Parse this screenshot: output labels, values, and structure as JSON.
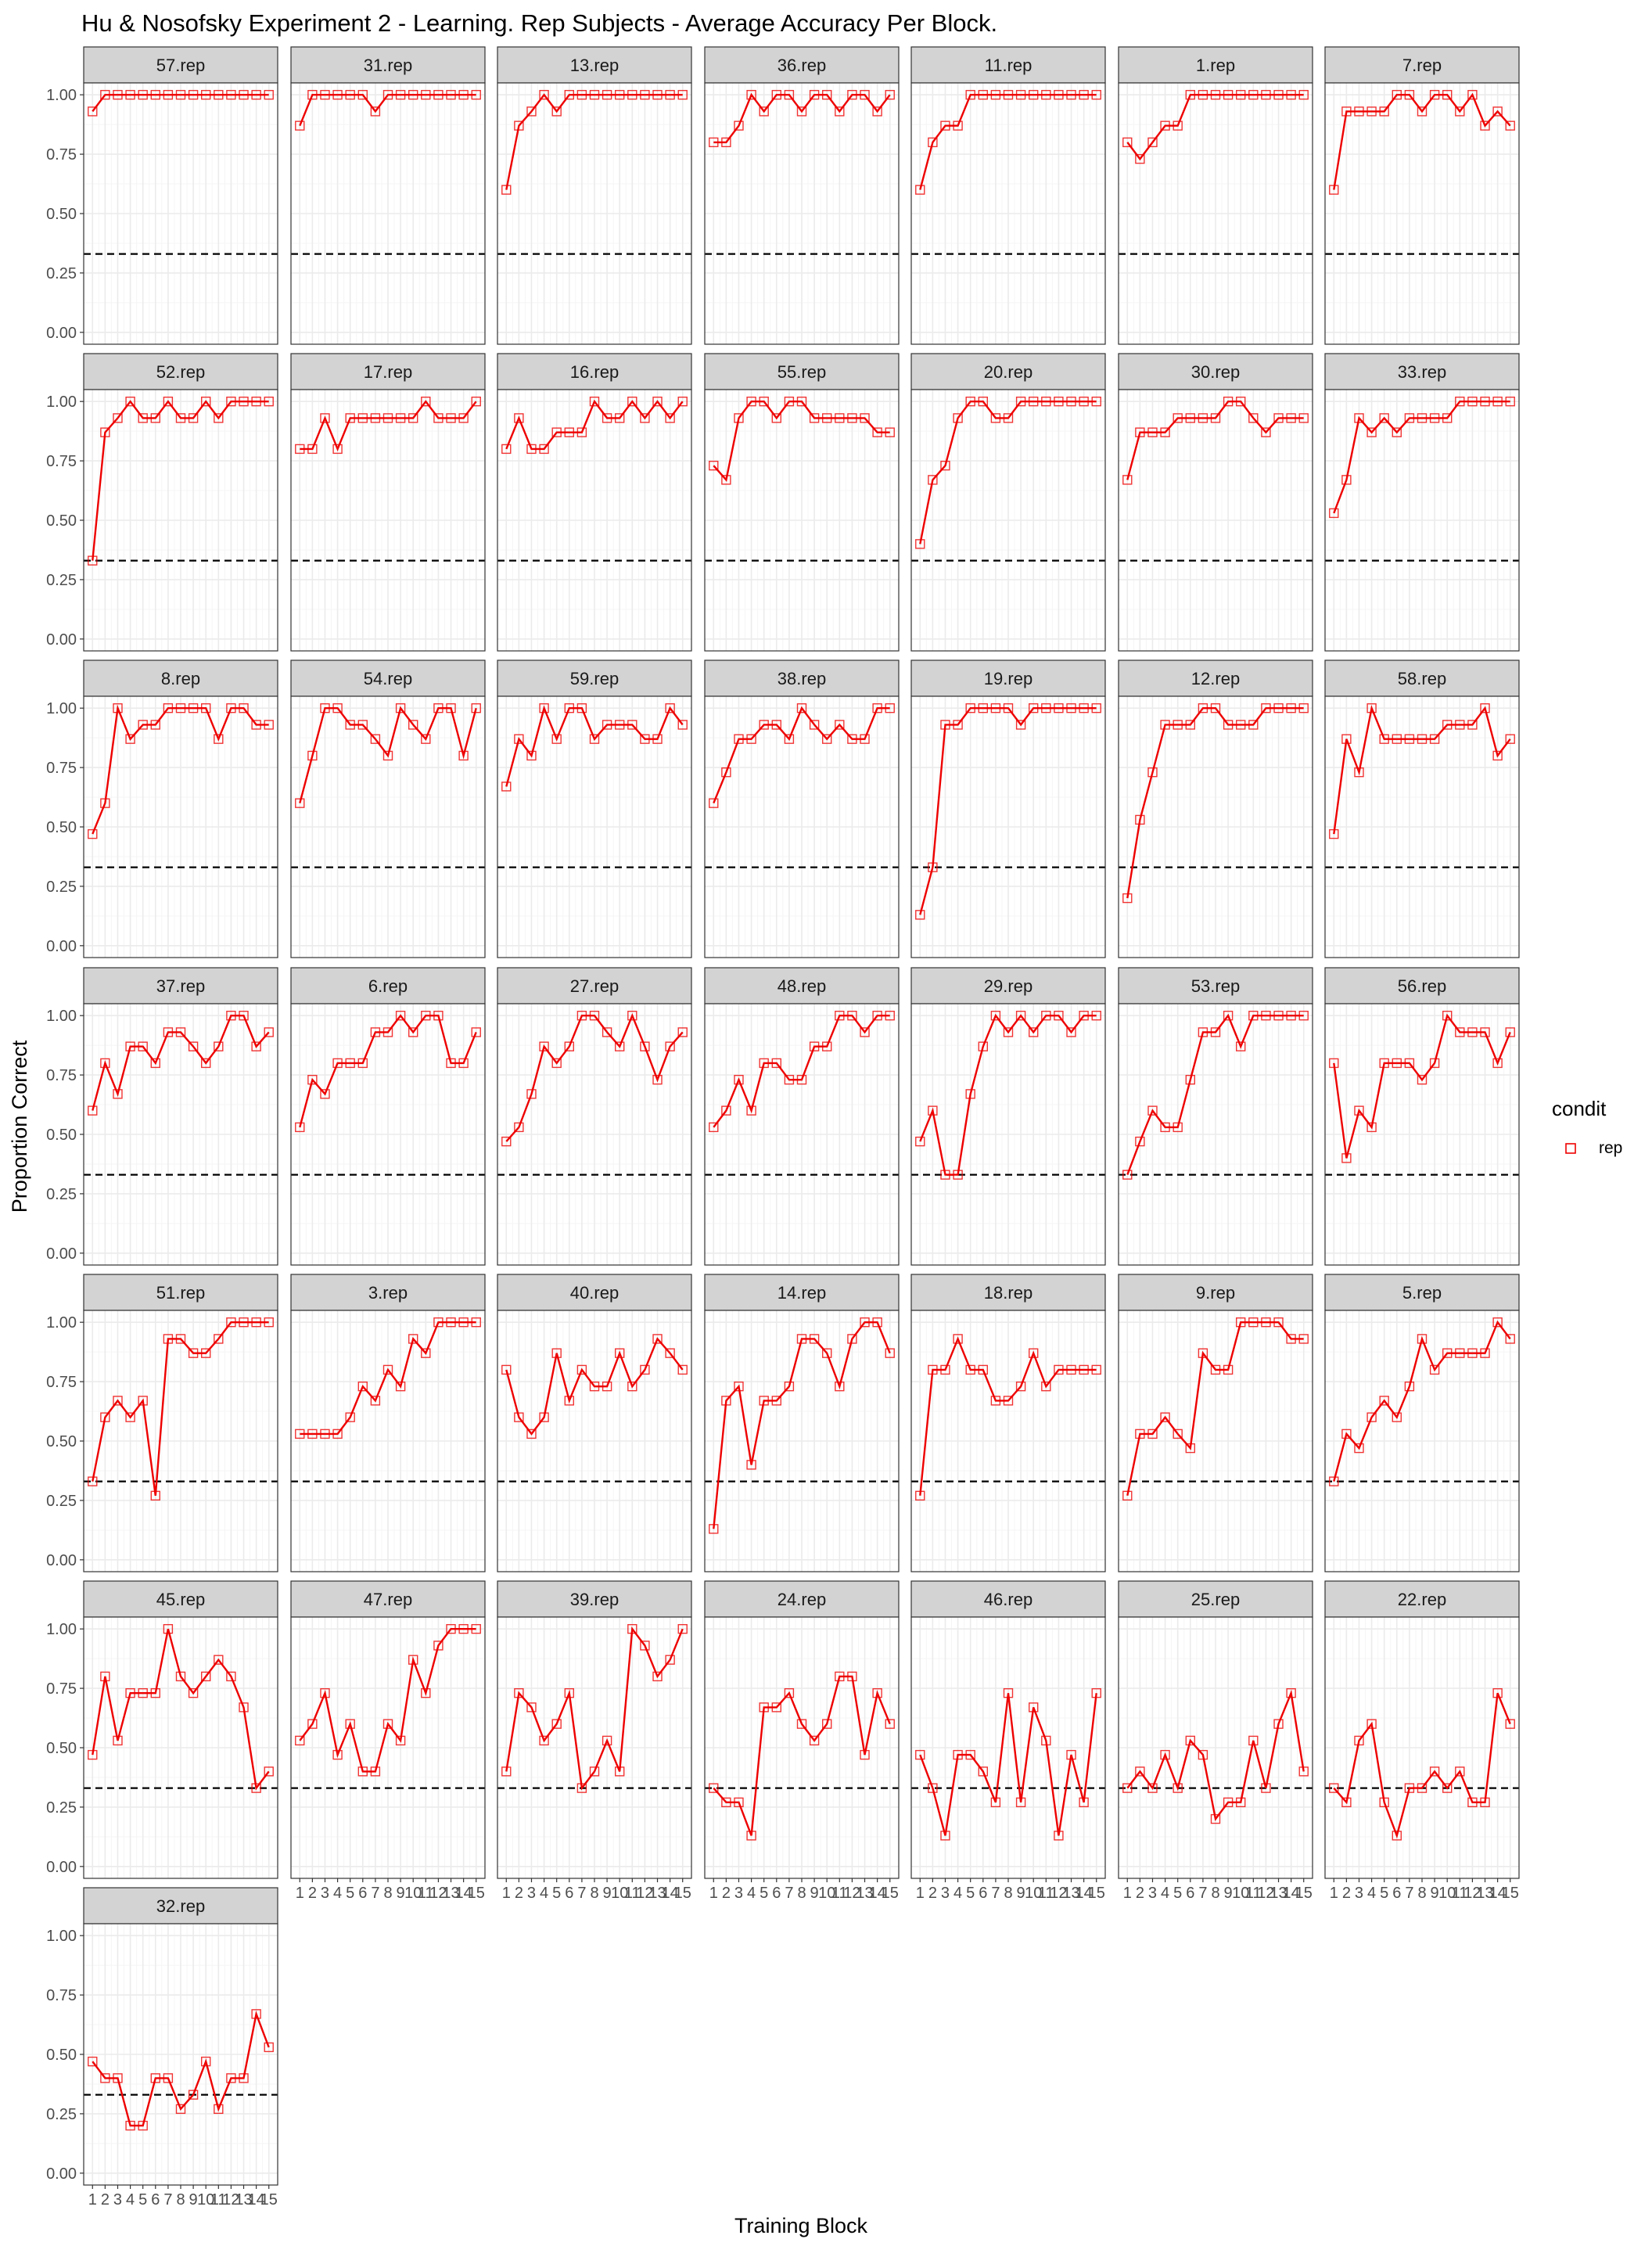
{
  "title": "Hu & Nosofsky Experiment 2 - Learning. Rep Subjects - Average Accuracy Per Block.",
  "xlabel": "Training Block",
  "ylabel": "Proportion Correct",
  "legend": {
    "title": "condit",
    "entries": [
      "rep"
    ],
    "position": "right"
  },
  "colors": {
    "series": "#ee0000",
    "chance_line": "#000000",
    "strip": "#d3d3d3",
    "panel_border": "#333333",
    "grid_major": "#ebebeb",
    "grid_minor": "#f5f5f5"
  },
  "chart_data": {
    "type": "line",
    "facet_layout": {
      "columns": 7,
      "rows": 7
    },
    "x": [
      1,
      2,
      3,
      4,
      5,
      6,
      7,
      8,
      9,
      10,
      11,
      12,
      13,
      14,
      15
    ],
    "x_tick_labels": [
      "1",
      "2",
      "3",
      "4",
      "5",
      "6",
      "7",
      "8",
      "9",
      "10",
      "11",
      "12",
      "13",
      "14",
      "15"
    ],
    "y_ticks": [
      "0.00",
      "0.25",
      "0.50",
      "0.75",
      "1.00"
    ],
    "ylim": [
      0,
      1
    ],
    "xlim": [
      1,
      15
    ],
    "chance_line": 0.33,
    "grid": true,
    "panels": [
      {
        "name": "57.rep",
        "values": [
          0.93,
          1,
          1,
          1,
          1,
          1,
          1,
          1,
          1,
          1,
          1,
          1,
          1,
          1,
          1
        ]
      },
      {
        "name": "31.rep",
        "values": [
          0.87,
          1,
          1,
          1,
          1,
          1,
          0.93,
          1,
          1,
          1,
          1,
          1,
          1,
          1,
          1
        ]
      },
      {
        "name": "13.rep",
        "values": [
          0.6,
          0.87,
          0.93,
          1,
          0.93,
          1,
          1,
          1,
          1,
          1,
          1,
          1,
          1,
          1,
          1
        ]
      },
      {
        "name": "36.rep",
        "values": [
          0.8,
          0.8,
          0.87,
          1,
          0.93,
          1,
          1,
          0.93,
          1,
          1,
          0.93,
          1,
          1,
          0.93,
          1
        ]
      },
      {
        "name": "11.rep",
        "values": [
          0.6,
          0.8,
          0.87,
          0.87,
          1,
          1,
          1,
          1,
          1,
          1,
          1,
          1,
          1,
          1,
          1
        ]
      },
      {
        "name": "1.rep",
        "values": [
          0.8,
          0.73,
          0.8,
          0.87,
          0.87,
          1,
          1,
          1,
          1,
          1,
          1,
          1,
          1,
          1,
          1
        ]
      },
      {
        "name": "7.rep",
        "values": [
          0.6,
          0.93,
          0.93,
          0.93,
          0.93,
          1,
          1,
          0.93,
          1,
          1,
          0.93,
          1,
          0.87,
          0.93,
          0.87
        ]
      },
      {
        "name": "52.rep",
        "values": [
          0.33,
          0.87,
          0.93,
          1,
          0.93,
          0.93,
          1,
          0.93,
          0.93,
          1,
          0.93,
          1,
          1,
          1,
          1
        ]
      },
      {
        "name": "17.rep",
        "values": [
          0.8,
          0.8,
          0.93,
          0.8,
          0.93,
          0.93,
          0.93,
          0.93,
          0.93,
          0.93,
          1,
          0.93,
          0.93,
          0.93,
          1
        ]
      },
      {
        "name": "16.rep",
        "values": [
          0.8,
          0.93,
          0.8,
          0.8,
          0.87,
          0.87,
          0.87,
          1,
          0.93,
          0.93,
          1,
          0.93,
          1,
          0.93,
          1
        ]
      },
      {
        "name": "55.rep",
        "values": [
          0.73,
          0.67,
          0.93,
          1,
          1,
          0.93,
          1,
          1,
          0.93,
          0.93,
          0.93,
          0.93,
          0.93,
          0.87,
          0.87
        ]
      },
      {
        "name": "20.rep",
        "values": [
          0.4,
          0.67,
          0.73,
          0.93,
          1,
          1,
          0.93,
          0.93,
          1,
          1,
          1,
          1,
          1,
          1,
          1
        ]
      },
      {
        "name": "30.rep",
        "values": [
          0.67,
          0.87,
          0.87,
          0.87,
          0.93,
          0.93,
          0.93,
          0.93,
          1,
          1,
          0.93,
          0.87,
          0.93,
          0.93,
          0.93
        ]
      },
      {
        "name": "33.rep",
        "values": [
          0.53,
          0.67,
          0.93,
          0.87,
          0.93,
          0.87,
          0.93,
          0.93,
          0.93,
          0.93,
          1,
          1,
          1,
          1,
          1
        ]
      },
      {
        "name": "8.rep",
        "values": [
          0.47,
          0.6,
          1,
          0.87,
          0.93,
          0.93,
          1,
          1,
          1,
          1,
          0.87,
          1,
          1,
          0.93,
          0.93
        ]
      },
      {
        "name": "54.rep",
        "values": [
          0.6,
          0.8,
          1,
          1,
          0.93,
          0.93,
          0.87,
          0.8,
          1,
          0.93,
          0.87,
          1,
          1,
          0.8,
          1
        ]
      },
      {
        "name": "59.rep",
        "values": [
          0.67,
          0.87,
          0.8,
          1,
          0.87,
          1,
          1,
          0.87,
          0.93,
          0.93,
          0.93,
          0.87,
          0.87,
          1,
          0.93
        ]
      },
      {
        "name": "38.rep",
        "values": [
          0.6,
          0.73,
          0.87,
          0.87,
          0.93,
          0.93,
          0.87,
          1,
          0.93,
          0.87,
          0.93,
          0.87,
          0.87,
          1,
          1
        ]
      },
      {
        "name": "19.rep",
        "values": [
          0.13,
          0.33,
          0.93,
          0.93,
          1,
          1,
          1,
          1,
          0.93,
          1,
          1,
          1,
          1,
          1,
          1
        ]
      },
      {
        "name": "12.rep",
        "values": [
          0.2,
          0.53,
          0.73,
          0.93,
          0.93,
          0.93,
          1,
          1,
          0.93,
          0.93,
          0.93,
          1,
          1,
          1,
          1
        ]
      },
      {
        "name": "58.rep",
        "values": [
          0.47,
          0.87,
          0.73,
          1,
          0.87,
          0.87,
          0.87,
          0.87,
          0.87,
          0.93,
          0.93,
          0.93,
          1,
          0.8,
          0.87
        ]
      },
      {
        "name": "37.rep",
        "values": [
          0.6,
          0.8,
          0.67,
          0.87,
          0.87,
          0.8,
          0.93,
          0.93,
          0.87,
          0.8,
          0.87,
          1,
          1,
          0.87,
          0.93
        ]
      },
      {
        "name": "6.rep",
        "values": [
          0.53,
          0.73,
          0.67,
          0.8,
          0.8,
          0.8,
          0.93,
          0.93,
          1,
          0.93,
          1,
          1,
          0.8,
          0.8,
          0.93
        ]
      },
      {
        "name": "27.rep",
        "values": [
          0.47,
          0.53,
          0.67,
          0.87,
          0.8,
          0.87,
          1,
          1,
          0.93,
          0.87,
          1,
          0.87,
          0.73,
          0.87,
          0.93
        ]
      },
      {
        "name": "48.rep",
        "values": [
          0.53,
          0.6,
          0.73,
          0.6,
          0.8,
          0.8,
          0.73,
          0.73,
          0.87,
          0.87,
          1,
          1,
          0.93,
          1,
          1
        ]
      },
      {
        "name": "29.rep",
        "values": [
          0.47,
          0.6,
          0.33,
          0.33,
          0.67,
          0.87,
          1,
          0.93,
          1,
          0.93,
          1,
          1,
          0.93,
          1,
          1
        ]
      },
      {
        "name": "53.rep",
        "values": [
          0.33,
          0.47,
          0.6,
          0.53,
          0.53,
          0.73,
          0.93,
          0.93,
          1,
          0.87,
          1,
          1,
          1,
          1,
          1
        ]
      },
      {
        "name": "56.rep",
        "values": [
          0.8,
          0.4,
          0.6,
          0.53,
          0.8,
          0.8,
          0.8,
          0.73,
          0.8,
          1,
          0.93,
          0.93,
          0.93,
          0.8,
          0.93
        ]
      },
      {
        "name": "51.rep",
        "values": [
          0.33,
          0.6,
          0.67,
          0.6,
          0.67,
          0.27,
          0.93,
          0.93,
          0.87,
          0.87,
          0.93,
          1,
          1,
          1,
          1
        ]
      },
      {
        "name": "3.rep",
        "values": [
          0.53,
          0.53,
          0.53,
          0.53,
          0.6,
          0.73,
          0.67,
          0.8,
          0.73,
          0.93,
          0.87,
          1,
          1,
          1,
          1
        ]
      },
      {
        "name": "40.rep",
        "values": [
          0.8,
          0.6,
          0.53,
          0.6,
          0.87,
          0.67,
          0.8,
          0.73,
          0.73,
          0.87,
          0.73,
          0.8,
          0.93,
          0.87,
          0.8
        ]
      },
      {
        "name": "14.rep",
        "values": [
          0.13,
          0.67,
          0.73,
          0.4,
          0.67,
          0.67,
          0.73,
          0.93,
          0.93,
          0.87,
          0.73,
          0.93,
          1,
          1,
          0.87
        ]
      },
      {
        "name": "18.rep",
        "values": [
          0.27,
          0.8,
          0.8,
          0.93,
          0.8,
          0.8,
          0.67,
          0.67,
          0.73,
          0.87,
          0.73,
          0.8,
          0.8,
          0.8,
          0.8
        ]
      },
      {
        "name": "9.rep",
        "values": [
          0.27,
          0.53,
          0.53,
          0.6,
          0.53,
          0.47,
          0.87,
          0.8,
          0.8,
          1,
          1,
          1,
          1,
          0.93,
          0.93
        ]
      },
      {
        "name": "5.rep",
        "values": [
          0.33,
          0.53,
          0.47,
          0.6,
          0.67,
          0.6,
          0.73,
          0.93,
          0.8,
          0.87,
          0.87,
          0.87,
          0.87,
          1,
          0.93
        ]
      },
      {
        "name": "45.rep",
        "values": [
          0.47,
          0.8,
          0.53,
          0.73,
          0.73,
          0.73,
          1,
          0.8,
          0.73,
          0.8,
          0.87,
          0.8,
          0.67,
          0.33,
          0.4
        ]
      },
      {
        "name": "47.rep",
        "values": [
          0.53,
          0.6,
          0.73,
          0.47,
          0.6,
          0.4,
          0.4,
          0.6,
          0.53,
          0.87,
          0.73,
          0.93,
          1,
          1,
          1
        ]
      },
      {
        "name": "39.rep",
        "values": [
          0.4,
          0.73,
          0.67,
          0.53,
          0.6,
          0.73,
          0.33,
          0.4,
          0.53,
          0.4,
          1,
          0.93,
          0.8,
          0.87,
          1
        ]
      },
      {
        "name": "24.rep",
        "values": [
          0.33,
          0.27,
          0.27,
          0.13,
          0.67,
          0.67,
          0.73,
          0.6,
          0.53,
          0.6,
          0.8,
          0.8,
          0.47,
          0.73,
          0.6
        ]
      },
      {
        "name": "46.rep",
        "values": [
          0.47,
          0.33,
          0.13,
          0.47,
          0.47,
          0.4,
          0.27,
          0.73,
          0.27,
          0.67,
          0.53,
          0.13,
          0.47,
          0.27,
          0.73
        ]
      },
      {
        "name": "25.rep",
        "values": [
          0.33,
          0.4,
          0.33,
          0.47,
          0.33,
          0.53,
          0.47,
          0.2,
          0.27,
          0.27,
          0.53,
          0.33,
          0.6,
          0.73,
          0.4
        ]
      },
      {
        "name": "22.rep",
        "values": [
          0.33,
          0.27,
          0.53,
          0.6,
          0.27,
          0.13,
          0.33,
          0.33,
          0.4,
          0.33,
          0.4,
          0.27,
          0.27,
          0.73,
          0.6
        ]
      },
      {
        "name": "32.rep",
        "values": [
          0.47,
          0.4,
          0.4,
          0.2,
          0.2,
          0.4,
          0.4,
          0.27,
          0.33,
          0.47,
          0.27,
          0.4,
          0.4,
          0.67,
          0.53
        ]
      }
    ]
  }
}
